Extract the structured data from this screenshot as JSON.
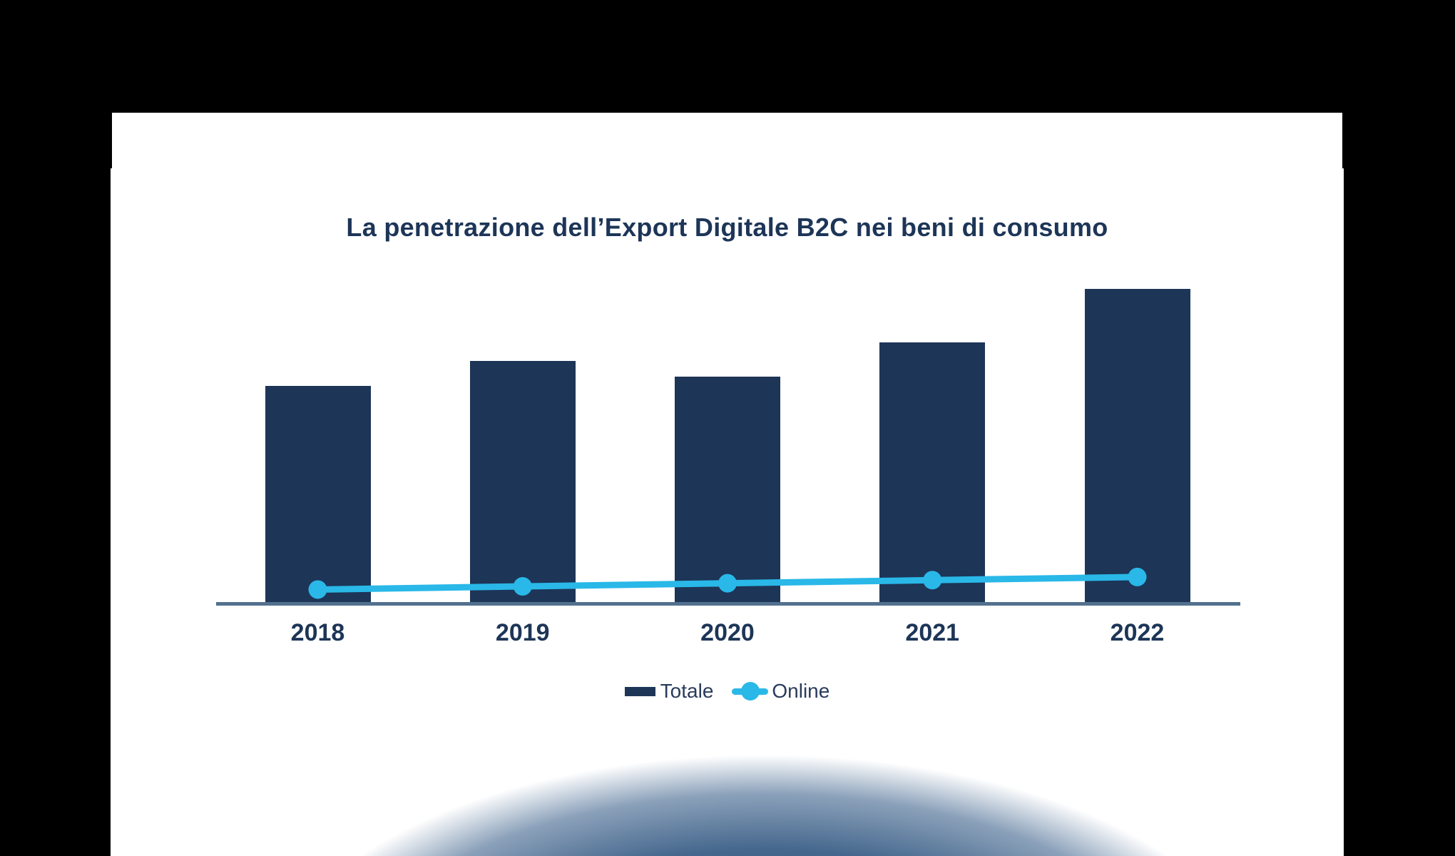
{
  "page": {
    "background_color": "#000000",
    "card_color": "#ffffff",
    "glow_color": "#2b5077"
  },
  "chart": {
    "title": "La penetrazione dell’Export Digitale B2C nei beni di consumo",
    "title_color": "#1d3557",
    "axis_color": "#53718e",
    "legend": [
      {
        "label": "Totale",
        "color": "#1d3557",
        "marker": "bar-swatch"
      },
      {
        "label": "Online",
        "color": "#29b8e8",
        "marker": "line-dot-swatch"
      }
    ]
  },
  "chart_data": {
    "type": "bar",
    "subtype": "bar-line-combo",
    "title": "La penetrazione dell’Export Digitale B2C nei beni di consumo",
    "categories": [
      "2018",
      "2019",
      "2020",
      "2021",
      "2022"
    ],
    "series": [
      {
        "name": "Totale",
        "type": "bar",
        "color": "#1d3557",
        "values": [
          69,
          77,
          72,
          83,
          100
        ]
      },
      {
        "name": "Online",
        "type": "line",
        "color": "#29b8e8",
        "values": [
          4,
          5,
          6,
          7,
          8
        ]
      }
    ],
    "xlabel": "",
    "ylabel": "",
    "ylim": [
      0,
      100
    ],
    "grid": false,
    "value_axis_visible": false,
    "data_labels_visible": false,
    "values_note": "No numeric axis or data labels are shown in the image; values are estimated from bar/dot heights on an index scale where Totale 2022 = 100.",
    "legend_position": "bottom"
  }
}
